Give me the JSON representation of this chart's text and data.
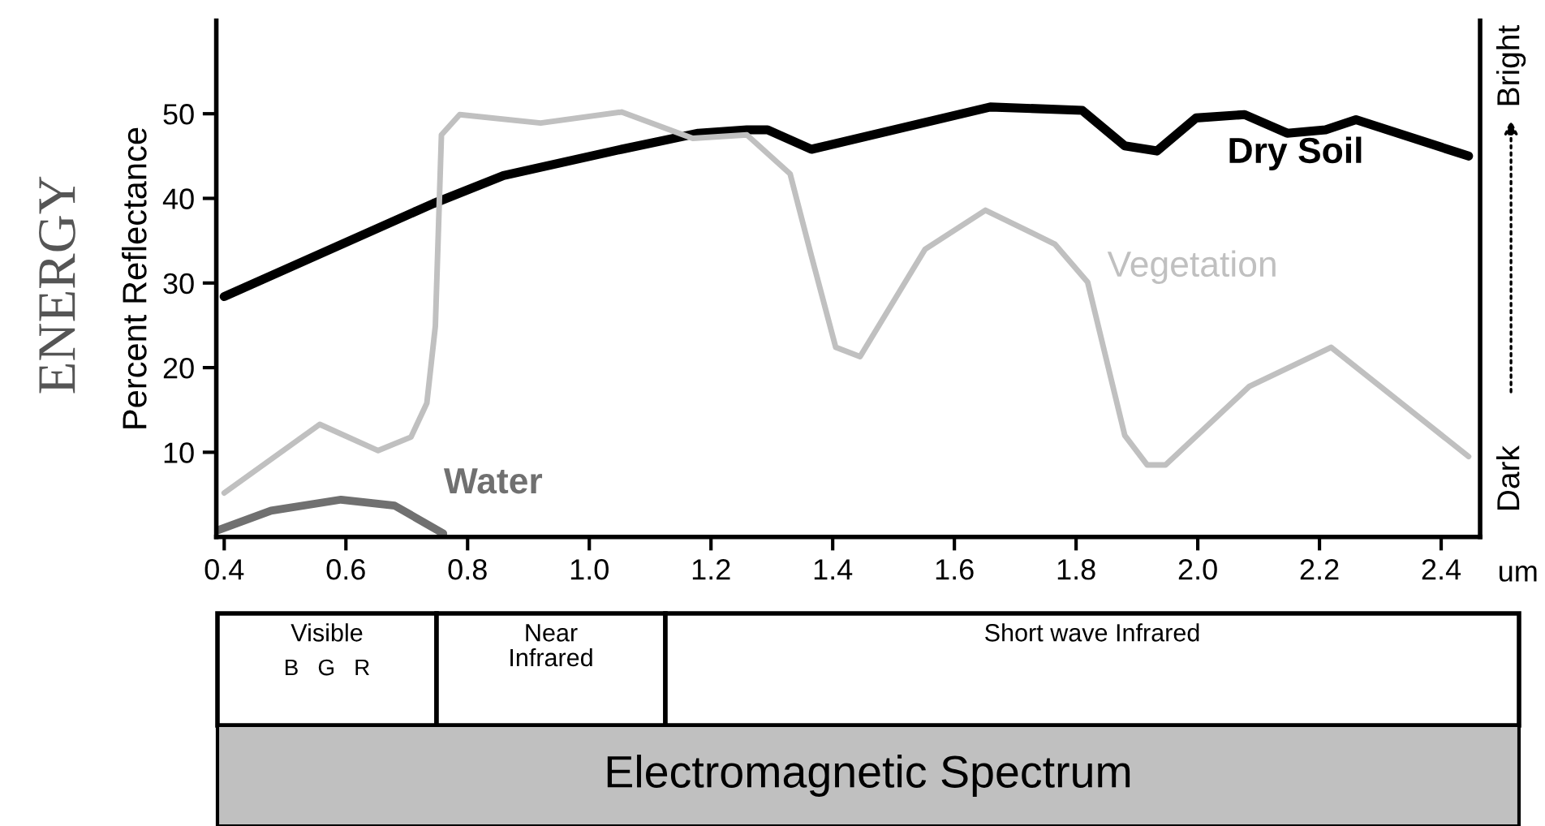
{
  "chart_data": {
    "type": "line",
    "ylabel": "Percent Reflectance",
    "xlabel": "um",
    "xlim": [
      0.387,
      2.464
    ],
    "ylim": [
      0,
      61
    ],
    "xticks": [
      0.4,
      0.6,
      0.8,
      {
        "value": 1.0,
        "label": "1.0"
      },
      1.2,
      1.4,
      1.6,
      1.8,
      {
        "value": 2.0,
        "label": "2.0"
      },
      2.2,
      2.4
    ],
    "yticks": [
      10,
      20,
      30,
      40,
      50
    ],
    "grid": false,
    "legend": false,
    "marker": "none",
    "line_style": "solid",
    "series": [
      {
        "name": "Dry Soil",
        "color": "#000000",
        "x": [
          0.4,
          0.744,
          0.859,
          1.053,
          1.179,
          1.259,
          1.293,
          1.365,
          1.659,
          1.81,
          1.88,
          1.933,
          1.997,
          2.077,
          2.147,
          2.21,
          2.26,
          2.445
        ],
        "values": [
          28.4,
          39.4,
          42.7,
          45.8,
          47.7,
          48.1,
          48.1,
          45.8,
          50.8,
          50.4,
          46.2,
          45.6,
          49.5,
          49.9,
          47.7,
          48.1,
          49.3,
          45.0
        ]
      },
      {
        "name": "Vegetation",
        "color": "#c0c0c0",
        "x": [
          0.4,
          0.557,
          0.653,
          0.707,
          0.733,
          0.747,
          0.757,
          0.787,
          0.92,
          1.053,
          1.17,
          1.259,
          1.33,
          1.365,
          1.405,
          1.445,
          1.552,
          1.651,
          1.765,
          1.819,
          1.88,
          1.917,
          1.947,
          2.085,
          2.219,
          2.445
        ],
        "values": [
          5.2,
          13.3,
          10.2,
          11.8,
          15.8,
          24.9,
          47.5,
          49.9,
          48.9,
          50.2,
          47.1,
          47.5,
          42.9,
          33.2,
          22.4,
          21.3,
          34.0,
          38.6,
          34.6,
          30.1,
          12.0,
          8.5,
          8.5,
          17.8,
          22.4,
          9.5
        ]
      },
      {
        "name": "Water",
        "color": "#707070",
        "x": [
          0.39,
          0.477,
          0.592,
          0.68,
          0.76
        ],
        "values": [
          0.8,
          3.1,
          4.4,
          3.7,
          0.4
        ]
      }
    ],
    "annotations": [
      "ENERGY",
      "Dark",
      "Bright",
      "Visible",
      "B   G   R",
      "Near\nInfrared",
      "Short wave Infrared",
      "Electromagnetic Spectrum"
    ]
  }
}
